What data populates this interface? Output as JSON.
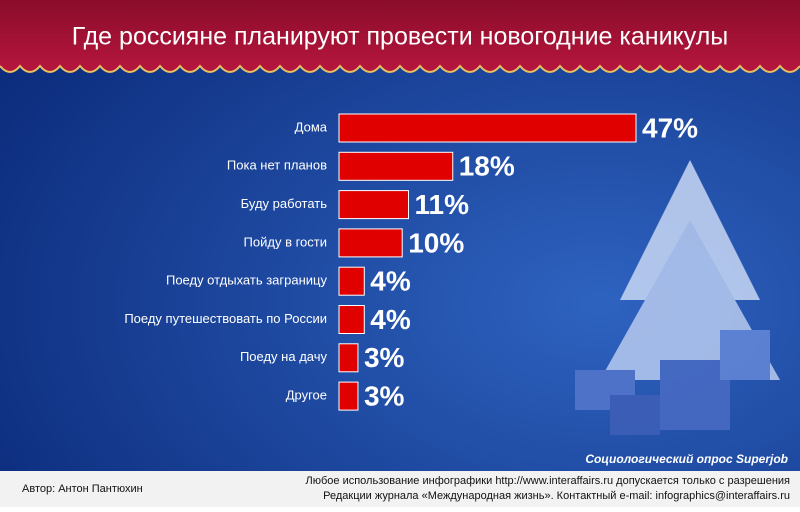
{
  "chart_data": {
    "type": "bar",
    "title": "Где россияне планируют провести новогодние каникулы",
    "categories": [
      "Дома",
      "Пока нет планов",
      "Буду работать",
      "Пойду в гости",
      "Поеду отдыхать заграницу",
      "Поеду путешествовать по России",
      "Поеду на дачу",
      "Другое"
    ],
    "values": [
      47,
      18,
      11,
      10,
      4,
      4,
      3,
      3
    ],
    "value_labels": [
      "47%",
      "18%",
      "11%",
      "10%",
      "4%",
      "4%",
      "3%",
      "3%"
    ],
    "color": "#e00000",
    "source": "Социологический опрос Superjob",
    "author": "Автор: Антон Пантюхин",
    "notice": [
      "Любое использование инфографики http://www.interaffairs.ru допускается только с разрешения",
      "Редакции журнала «Международная жизнь». Контактный e-mail: infographics@interaffairs.ru"
    ]
  }
}
